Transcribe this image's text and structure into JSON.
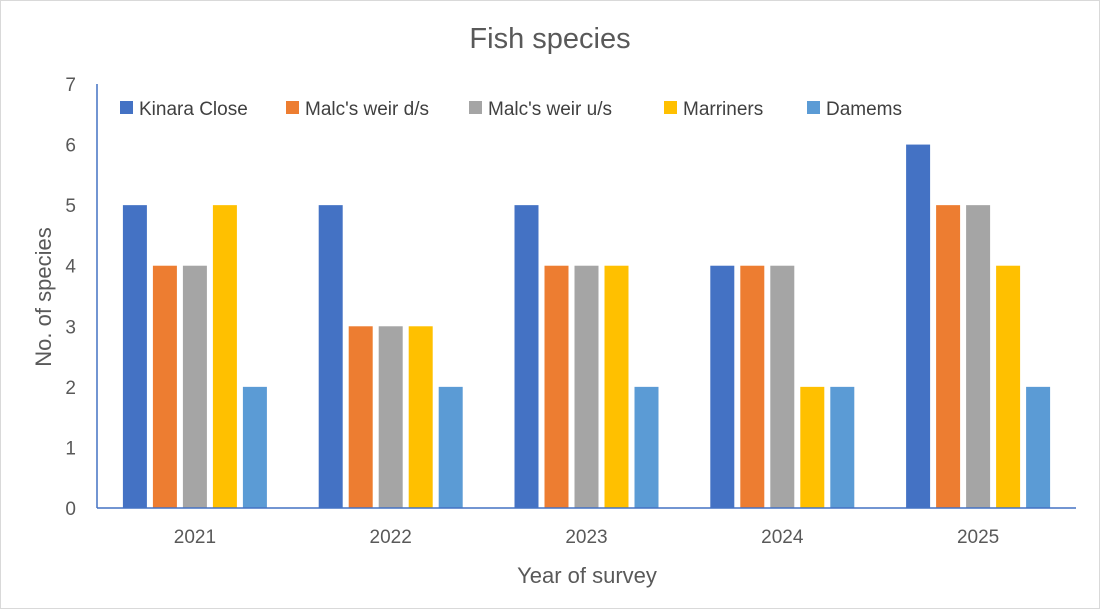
{
  "chart_data": {
    "type": "bar",
    "title": "Fish species",
    "xlabel": "Year of survey",
    "ylabel": "No. of species",
    "ylim": [
      0,
      7
    ],
    "yticks": [
      0,
      1,
      2,
      3,
      4,
      5,
      6,
      7
    ],
    "grid": false,
    "legend_position": "top",
    "categories": [
      "2021",
      "2022",
      "2023",
      "2024",
      "2025"
    ],
    "series": [
      {
        "name": "Kinara Close",
        "color": "#4472c4",
        "values": [
          5,
          5,
          5,
          4,
          6
        ]
      },
      {
        "name": "Malc's weir d/s",
        "color": "#ed7d31",
        "values": [
          4,
          3,
          4,
          4,
          5
        ]
      },
      {
        "name": "Malc's weir u/s",
        "color": "#a5a5a5",
        "values": [
          4,
          3,
          4,
          4,
          5
        ]
      },
      {
        "name": "Marriners",
        "color": "#ffc000",
        "values": [
          5,
          3,
          4,
          2,
          4
        ]
      },
      {
        "name": "Damems",
        "color": "#5b9bd5",
        "values": [
          2,
          2,
          2,
          2,
          2
        ]
      }
    ],
    "axis_color": "#4472c4"
  }
}
